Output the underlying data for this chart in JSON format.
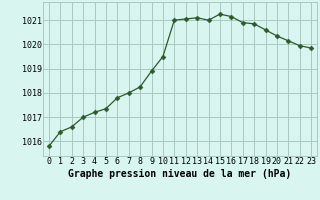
{
  "x": [
    0,
    1,
    2,
    3,
    4,
    5,
    6,
    7,
    8,
    9,
    10,
    11,
    12,
    13,
    14,
    15,
    16,
    17,
    18,
    19,
    20,
    21,
    22,
    23
  ],
  "y": [
    1015.8,
    1016.4,
    1016.6,
    1017.0,
    1017.2,
    1017.35,
    1017.8,
    1018.0,
    1018.25,
    1018.9,
    1019.5,
    1021.0,
    1021.05,
    1021.1,
    1021.0,
    1021.25,
    1021.15,
    1020.9,
    1020.85,
    1020.6,
    1020.35,
    1020.15,
    1019.95,
    1019.85
  ],
  "line_color": "#2d5a2d",
  "marker_color": "#2d5a2d",
  "bg_color": "#d8f5f0",
  "grid_color": "#a8c8c0",
  "xlabel": "Graphe pression niveau de la mer (hPa)",
  "ylabel": "",
  "ylim_min": 1015.4,
  "ylim_max": 1021.75,
  "yticks": [
    1016,
    1017,
    1018,
    1019,
    1020,
    1021
  ],
  "xticks": [
    0,
    1,
    2,
    3,
    4,
    5,
    6,
    7,
    8,
    9,
    10,
    11,
    12,
    13,
    14,
    15,
    16,
    17,
    18,
    19,
    20,
    21,
    22,
    23
  ],
  "tick_fontsize": 6.0,
  "xlabel_fontsize": 7.0,
  "marker_size": 2.5,
  "linewidth": 0.9
}
